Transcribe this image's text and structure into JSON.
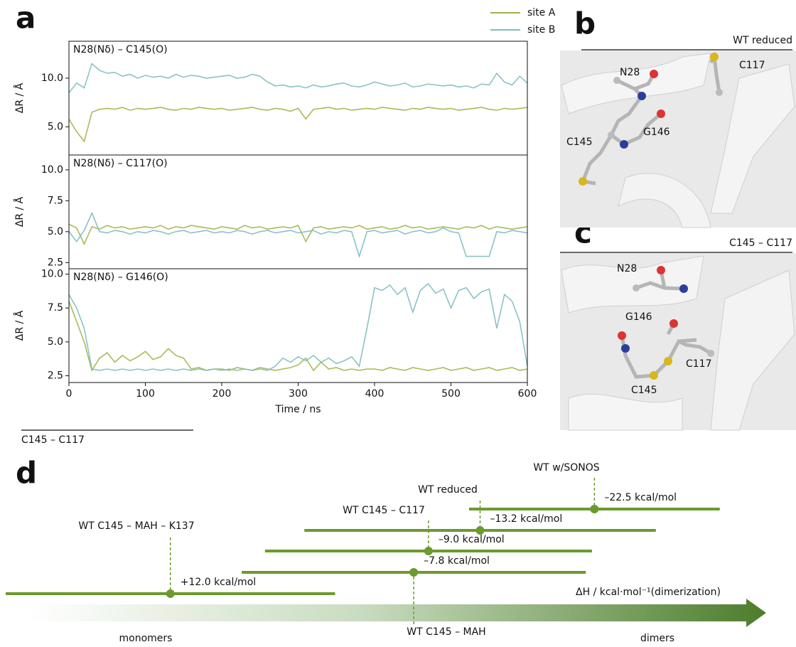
{
  "panel_letters": [
    "a",
    "b",
    "c",
    "d"
  ],
  "footnote": "C145 – C117",
  "structures": [
    {
      "title": "WT reduced",
      "labels": [
        "N28",
        "C117",
        "G146",
        "C145"
      ]
    },
    {
      "title": "C145 – C117",
      "labels": [
        "N28",
        "G146",
        "C117",
        "C145"
      ]
    }
  ],
  "chart_data": [
    {
      "type": "line",
      "title": "N28(Nδ) – C145(O)",
      "ylabel": "ΔR / Å",
      "x": [
        0,
        10,
        20,
        30,
        40,
        50,
        60,
        70,
        80,
        90,
        100,
        110,
        120,
        130,
        140,
        150,
        160,
        170,
        180,
        190,
        200,
        210,
        220,
        230,
        240,
        250,
        260,
        270,
        280,
        290,
        300,
        310,
        320,
        330,
        340,
        350,
        360,
        370,
        380,
        390,
        400,
        410,
        420,
        430,
        440,
        450,
        460,
        470,
        480,
        490,
        500,
        510,
        520,
        530,
        540,
        550,
        560,
        570,
        580,
        590,
        600
      ],
      "xlim": [
        0,
        600
      ],
      "ylim": [
        2.1,
        13.8
      ],
      "yticks": [
        {
          "value": 5,
          "label": "5.0"
        },
        {
          "value": 10,
          "label": "10.0"
        }
      ],
      "series": [
        {
          "name": "site A",
          "color": "#9db545",
          "values": [
            5.8,
            4.5,
            3.5,
            6.5,
            6.8,
            6.9,
            6.8,
            7.0,
            6.7,
            6.9,
            6.8,
            6.9,
            7.0,
            6.8,
            6.7,
            6.9,
            6.8,
            7.0,
            6.9,
            6.8,
            6.9,
            6.7,
            6.8,
            6.9,
            7.0,
            6.8,
            6.7,
            6.9,
            6.8,
            6.6,
            6.9,
            5.8,
            6.8,
            6.9,
            7.0,
            6.8,
            6.9,
            6.7,
            6.8,
            6.9,
            6.8,
            7.0,
            6.9,
            6.8,
            6.7,
            6.9,
            6.8,
            7.0,
            6.9,
            6.8,
            6.9,
            6.7,
            6.8,
            6.9,
            7.0,
            6.8,
            6.7,
            6.9,
            6.8,
            6.9,
            7.0
          ]
        },
        {
          "name": "site B",
          "color": "#7dbdc0",
          "values": [
            8.5,
            9.5,
            9.0,
            11.5,
            10.8,
            10.5,
            10.6,
            10.2,
            10.4,
            10.0,
            10.3,
            10.1,
            10.2,
            10.0,
            10.4,
            10.1,
            10.3,
            10.2,
            10.0,
            10.1,
            10.2,
            10.3,
            10.0,
            10.1,
            10.4,
            10.2,
            9.6,
            9.2,
            9.3,
            9.1,
            9.2,
            9.0,
            9.3,
            9.1,
            9.2,
            9.4,
            9.5,
            9.2,
            9.1,
            9.3,
            9.6,
            9.4,
            9.2,
            9.3,
            9.5,
            9.1,
            9.2,
            9.4,
            9.3,
            9.2,
            9.3,
            9.1,
            9.2,
            9.0,
            9.4,
            9.3,
            10.5,
            9.6,
            9.3,
            10.2,
            9.5
          ]
        }
      ]
    },
    {
      "type": "line",
      "title": "N28(Nδ) – C117(O)",
      "ylabel": "ΔR / Å",
      "x": [
        0,
        10,
        20,
        30,
        40,
        50,
        60,
        70,
        80,
        90,
        100,
        110,
        120,
        130,
        140,
        150,
        160,
        170,
        180,
        190,
        200,
        210,
        220,
        230,
        240,
        250,
        260,
        270,
        280,
        290,
        300,
        310,
        320,
        330,
        340,
        350,
        360,
        370,
        380,
        390,
        400,
        410,
        420,
        430,
        440,
        450,
        460,
        470,
        480,
        490,
        500,
        510,
        520,
        530,
        540,
        550,
        560,
        570,
        580,
        590,
        600
      ],
      "xlim": [
        0,
        600
      ],
      "ylim": [
        2.0,
        11.2
      ],
      "yticks": [
        {
          "value": 2.5,
          "label": "2.5"
        },
        {
          "value": 5,
          "label": "5.0"
        },
        {
          "value": 7.5,
          "label": "7.5"
        },
        {
          "value": 10,
          "label": "10.0"
        }
      ],
      "series": [
        {
          "color": "#9db545",
          "values": [
            5.6,
            5.3,
            4.0,
            5.4,
            5.2,
            5.5,
            5.3,
            5.4,
            5.2,
            5.3,
            5.4,
            5.3,
            5.5,
            5.2,
            5.4,
            5.3,
            5.5,
            5.4,
            5.3,
            5.2,
            5.4,
            5.3,
            5.2,
            5.5,
            5.3,
            5.4,
            5.2,
            5.3,
            5.4,
            5.3,
            5.5,
            4.2,
            5.3,
            5.4,
            5.2,
            5.3,
            5.4,
            5.3,
            5.5,
            5.2,
            5.3,
            5.4,
            5.2,
            5.3,
            5.5,
            5.3,
            5.4,
            5.2,
            5.3,
            5.4,
            5.3,
            5.2,
            5.4,
            5.3,
            5.5,
            5.2,
            5.4,
            5.3,
            5.2,
            5.3,
            5.4
          ]
        },
        {
          "color": "#7dbdc0",
          "values": [
            5.0,
            4.2,
            5.1,
            6.5,
            5.0,
            4.9,
            5.1,
            5.0,
            4.8,
            5.0,
            4.9,
            5.1,
            5.0,
            4.8,
            5.0,
            5.1,
            4.9,
            5.0,
            5.1,
            4.9,
            5.0,
            4.9,
            5.1,
            5.0,
            4.8,
            5.0,
            5.1,
            4.9,
            5.0,
            5.1,
            4.9,
            5.0,
            5.1,
            4.8,
            5.0,
            4.9,
            5.1,
            5.0,
            3.0,
            5.0,
            5.1,
            4.9,
            5.0,
            5.1,
            4.8,
            5.0,
            5.1,
            4.9,
            5.0,
            5.3,
            5.0,
            4.9,
            3.0,
            3.0,
            3.0,
            3.0,
            5.0,
            4.9,
            5.1,
            5.0,
            4.9
          ]
        }
      ]
    },
    {
      "type": "line",
      "title": "N28(Nδ) – G146(O)",
      "ylabel": "ΔR / Å",
      "xlabel": "Time / ns",
      "x": [
        0,
        10,
        20,
        30,
        40,
        50,
        60,
        70,
        80,
        90,
        100,
        110,
        120,
        130,
        140,
        150,
        160,
        170,
        180,
        190,
        200,
        210,
        220,
        230,
        240,
        250,
        260,
        270,
        280,
        290,
        300,
        310,
        320,
        330,
        340,
        350,
        360,
        370,
        380,
        390,
        400,
        410,
        420,
        430,
        440,
        450,
        460,
        470,
        480,
        490,
        500,
        510,
        520,
        530,
        540,
        550,
        560,
        570,
        580,
        590,
        600
      ],
      "xlim": [
        0,
        600
      ],
      "xticks": [
        0,
        100,
        200,
        300,
        400,
        500,
        600
      ],
      "ylim": [
        2.0,
        10.4
      ],
      "yticks": [
        {
          "value": 2.5,
          "label": "2.5"
        },
        {
          "value": 5,
          "label": "5.0"
        },
        {
          "value": 7.5,
          "label": "7.5"
        },
        {
          "value": 10,
          "label": "10.0"
        }
      ],
      "series": [
        {
          "color": "#9db545",
          "values": [
            8.0,
            6.5,
            5.0,
            2.9,
            3.8,
            4.2,
            3.5,
            4.0,
            3.6,
            3.9,
            4.3,
            3.7,
            3.9,
            4.5,
            4.0,
            3.8,
            3.0,
            3.1,
            2.9,
            3.0,
            3.0,
            2.9,
            3.1,
            3.0,
            2.9,
            3.1,
            3.0,
            2.9,
            3.0,
            3.1,
            3.3,
            3.8,
            2.9,
            3.5,
            3.0,
            3.1,
            2.9,
            3.0,
            2.9,
            3.0,
            3.0,
            2.9,
            3.1,
            3.0,
            2.9,
            3.1,
            3.0,
            2.9,
            3.0,
            3.1,
            2.9,
            3.0,
            3.1,
            2.9,
            3.0,
            3.1,
            2.9,
            3.0,
            3.1,
            2.9,
            3.0
          ]
        },
        {
          "color": "#7dbdc0",
          "values": [
            8.5,
            7.5,
            6.0,
            3.0,
            2.9,
            3.0,
            2.9,
            3.0,
            2.9,
            3.0,
            2.9,
            3.0,
            2.9,
            3.0,
            2.9,
            3.0,
            2.9,
            3.0,
            2.9,
            3.0,
            2.9,
            3.0,
            2.9,
            3.0,
            2.9,
            3.0,
            2.9,
            3.2,
            3.8,
            3.5,
            3.9,
            3.6,
            4.0,
            3.5,
            3.8,
            3.4,
            3.6,
            3.9,
            3.2,
            6.0,
            9.0,
            8.8,
            9.2,
            8.5,
            9.0,
            7.2,
            8.8,
            9.3,
            8.6,
            8.9,
            7.5,
            8.8,
            9.0,
            8.2,
            8.7,
            8.9,
            6.0,
            8.5,
            8.0,
            6.5,
            3.2
          ]
        }
      ]
    },
    {
      "type": "dot_range",
      "xlabel": "ΔH / kcal·mol⁻¹(dimerization)",
      "annotations": [
        "monomers",
        "dimers"
      ],
      "color": "#6b9a2f",
      "xlim": [
        25.4,
        -36.3
      ],
      "categories": [
        "WT w/SONOS",
        "WT reduced",
        "WT C145 – C117",
        "WT C145 – MAH",
        "WT C145 – MAH – K137"
      ],
      "values": [
        -22.5,
        -13.2,
        -9.0,
        -7.8,
        12.0
      ],
      "value_labels": [
        "–22.5 kcal/mol",
        "–13.2 kcal/mol",
        "–9.0 kcal/mol",
        "–7.8 kcal/mol",
        "+12.0 kcal/mol"
      ],
      "errors": [
        10.2,
        14.3,
        13.3,
        14.0,
        13.4
      ]
    }
  ]
}
